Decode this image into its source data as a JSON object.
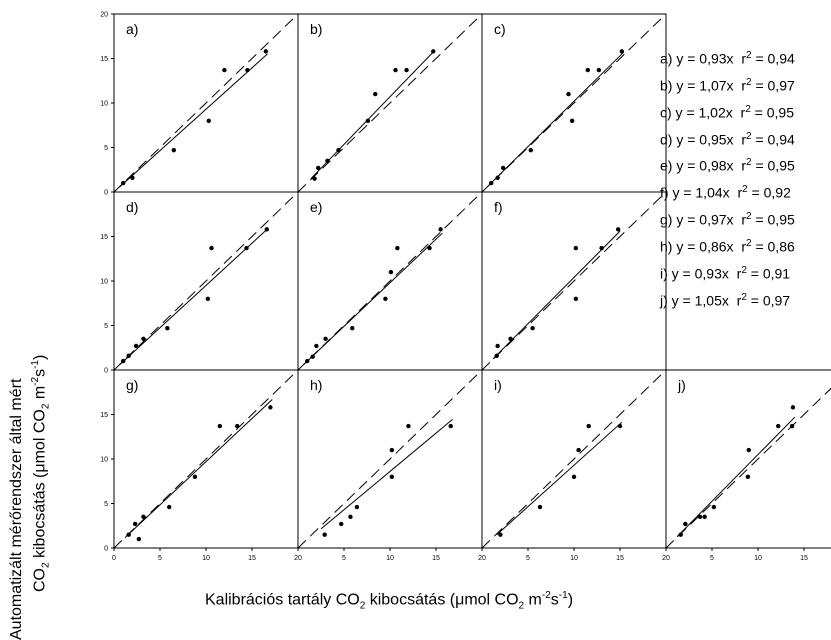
{
  "ylabel": {
    "line1": "Automatizált mérőrendszer által mért",
    "line2_pre": "CO",
    "line2_sub": "2",
    "line2_mid": " kibocsátás (μmol CO",
    "line2_sub2": "2",
    "line2_post": " m",
    "line2_sup": "-2",
    "line2_post2": "s",
    "line2_sup2": "-1",
    "line2_end": ")"
  },
  "xlabel": {
    "pre": "Kalibrációs tartály CO",
    "sub": "2",
    "mid": " kibocsátás (μmol CO",
    "sub2": "2",
    "post": " m",
    "sup": "-2",
    "post2": "s",
    "sup2": "-1",
    "end": ")"
  },
  "legend": [
    {
      "eq": "a) y = 0,93x",
      "r": "r",
      "r_sup": "2",
      "r_val": " = 0,94"
    },
    {
      "eq": "b) y = 1,07x",
      "r": "r",
      "r_sup": "2",
      "r_val": " = 0,97"
    },
    {
      "eq": "c) y = 1,02x",
      "r": "r",
      "r_sup": "2",
      "r_val": " = 0,95"
    },
    {
      "eq": "d) y = 0,95x",
      "r": "r",
      "r_sup": "2",
      "r_val": " = 0,94"
    },
    {
      "eq": "e) y = 0,98x",
      "r": "r",
      "r_sup": "2",
      "r_val": " = 0,95"
    },
    {
      "eq": "f) y = 1,04x",
      "r": "r",
      "r_sup": "2",
      "r_val": " = 0,92"
    },
    {
      "eq": "g) y = 0,97x",
      "r": "r",
      "r_sup": "2",
      "r_val": " = 0,95"
    },
    {
      "eq": "h) y = 0,86x",
      "r": "r",
      "r_sup": "2",
      "r_val": " = 0,86"
    },
    {
      "eq": "i) y = 0,93x",
      "r": "r",
      "r_sup": "2",
      "r_val": " = 0,91"
    },
    {
      "eq": "j) y = 1,05x",
      "r": "r",
      "r_sup": "2",
      "r_val": " = 0,97"
    }
  ],
  "chart_data": [
    {
      "type": "scatter",
      "label": "a)",
      "xlim": [
        0,
        20
      ],
      "ylim": [
        0,
        20
      ],
      "slope": 0.93,
      "x": [
        1,
        2,
        6.5,
        10.3,
        12,
        14.5,
        16.5
      ],
      "y": [
        1,
        1.6,
        4.7,
        8,
        13.7,
        13.7,
        15.8
      ]
    },
    {
      "type": "scatter",
      "label": "b)",
      "xlim": [
        0,
        20
      ],
      "ylim": [
        0,
        20
      ],
      "slope": 1.07,
      "x": [
        1.8,
        2.2,
        3.2,
        4.4,
        7.6,
        8.4,
        10.6,
        11.8,
        14.7
      ],
      "y": [
        1.5,
        2.7,
        3.5,
        4.7,
        8,
        11,
        13.7,
        13.7,
        15.8
      ]
    },
    {
      "type": "scatter",
      "label": "c)",
      "xlim": [
        0,
        20
      ],
      "ylim": [
        0,
        20
      ],
      "slope": 1.02,
      "x": [
        1,
        1.7,
        2.3,
        5.3,
        9.4,
        9.8,
        11.5,
        12.7,
        15.2
      ],
      "y": [
        1,
        1.6,
        2.7,
        4.7,
        11,
        8,
        13.7,
        13.7,
        15.8
      ]
    },
    {
      "type": "scatter",
      "label": "d)",
      "xlim": [
        0,
        20
      ],
      "ylim": [
        0,
        20
      ],
      "slope": 0.95,
      "x": [
        1,
        1.6,
        2.4,
        3.2,
        5.8,
        10.2,
        10.6,
        14.4,
        16.6
      ],
      "y": [
        1,
        1.6,
        2.7,
        3.5,
        4.7,
        8,
        13.7,
        13.7,
        15.8
      ]
    },
    {
      "type": "scatter",
      "label": "e)",
      "xlim": [
        0,
        20
      ],
      "ylim": [
        0,
        20
      ],
      "slope": 0.98,
      "x": [
        1,
        1.6,
        2,
        3,
        5.9,
        9.5,
        10.1,
        10.8,
        14.3,
        15.5
      ],
      "y": [
        1,
        1.5,
        2.7,
        3.5,
        4.7,
        8,
        11,
        13.7,
        13.7,
        15.8
      ]
    },
    {
      "type": "scatter",
      "label": "f)",
      "xlim": [
        0,
        20
      ],
      "ylim": [
        0,
        20
      ],
      "slope": 1.04,
      "x": [
        1.6,
        1.7,
        3.1,
        5.5,
        10.2,
        10.2,
        13,
        14.8
      ],
      "y": [
        1.6,
        2.7,
        3.5,
        4.7,
        13.7,
        8,
        13.7,
        15.8
      ]
    },
    {
      "type": "scatter",
      "label": "g)",
      "xlim": [
        0,
        20
      ],
      "ylim": [
        0,
        20
      ],
      "slope": 0.97,
      "x": [
        1.6,
        2.3,
        2.7,
        3.2,
        6,
        8.8,
        11.5,
        13.4,
        17
      ],
      "y": [
        1.5,
        2.7,
        1,
        3.5,
        4.6,
        8,
        13.7,
        13.7,
        15.8
      ]
    },
    {
      "type": "scatter",
      "label": "h)",
      "xlim": [
        0,
        20
      ],
      "ylim": [
        0,
        20
      ],
      "slope": 0.86,
      "x": [
        2.9,
        4.7,
        5.7,
        6.4,
        10.2,
        10.2,
        12,
        16.6
      ],
      "y": [
        1.5,
        2.7,
        3.5,
        4.6,
        8,
        11,
        13.7,
        13.7
      ]
    },
    {
      "type": "scatter",
      "label": "i)",
      "xlim": [
        0,
        20
      ],
      "ylim": [
        0,
        20
      ],
      "slope": 0.93,
      "x": [
        2,
        6.3,
        10,
        10.5,
        11.6,
        15
      ],
      "y": [
        1.5,
        4.6,
        8,
        11,
        13.7,
        13.7
      ]
    },
    {
      "type": "scatter",
      "label": "j)",
      "xlim": [
        0,
        20
      ],
      "ylim": [
        0,
        20
      ],
      "slope": 1.05,
      "x": [
        1.6,
        2.1,
        3.7,
        4.2,
        5.2,
        8.9,
        9,
        12.2,
        13.7,
        13.8
      ],
      "y": [
        1.5,
        2.7,
        3.5,
        3.5,
        4.6,
        8,
        11,
        13.7,
        13.7,
        15.8
      ]
    }
  ]
}
